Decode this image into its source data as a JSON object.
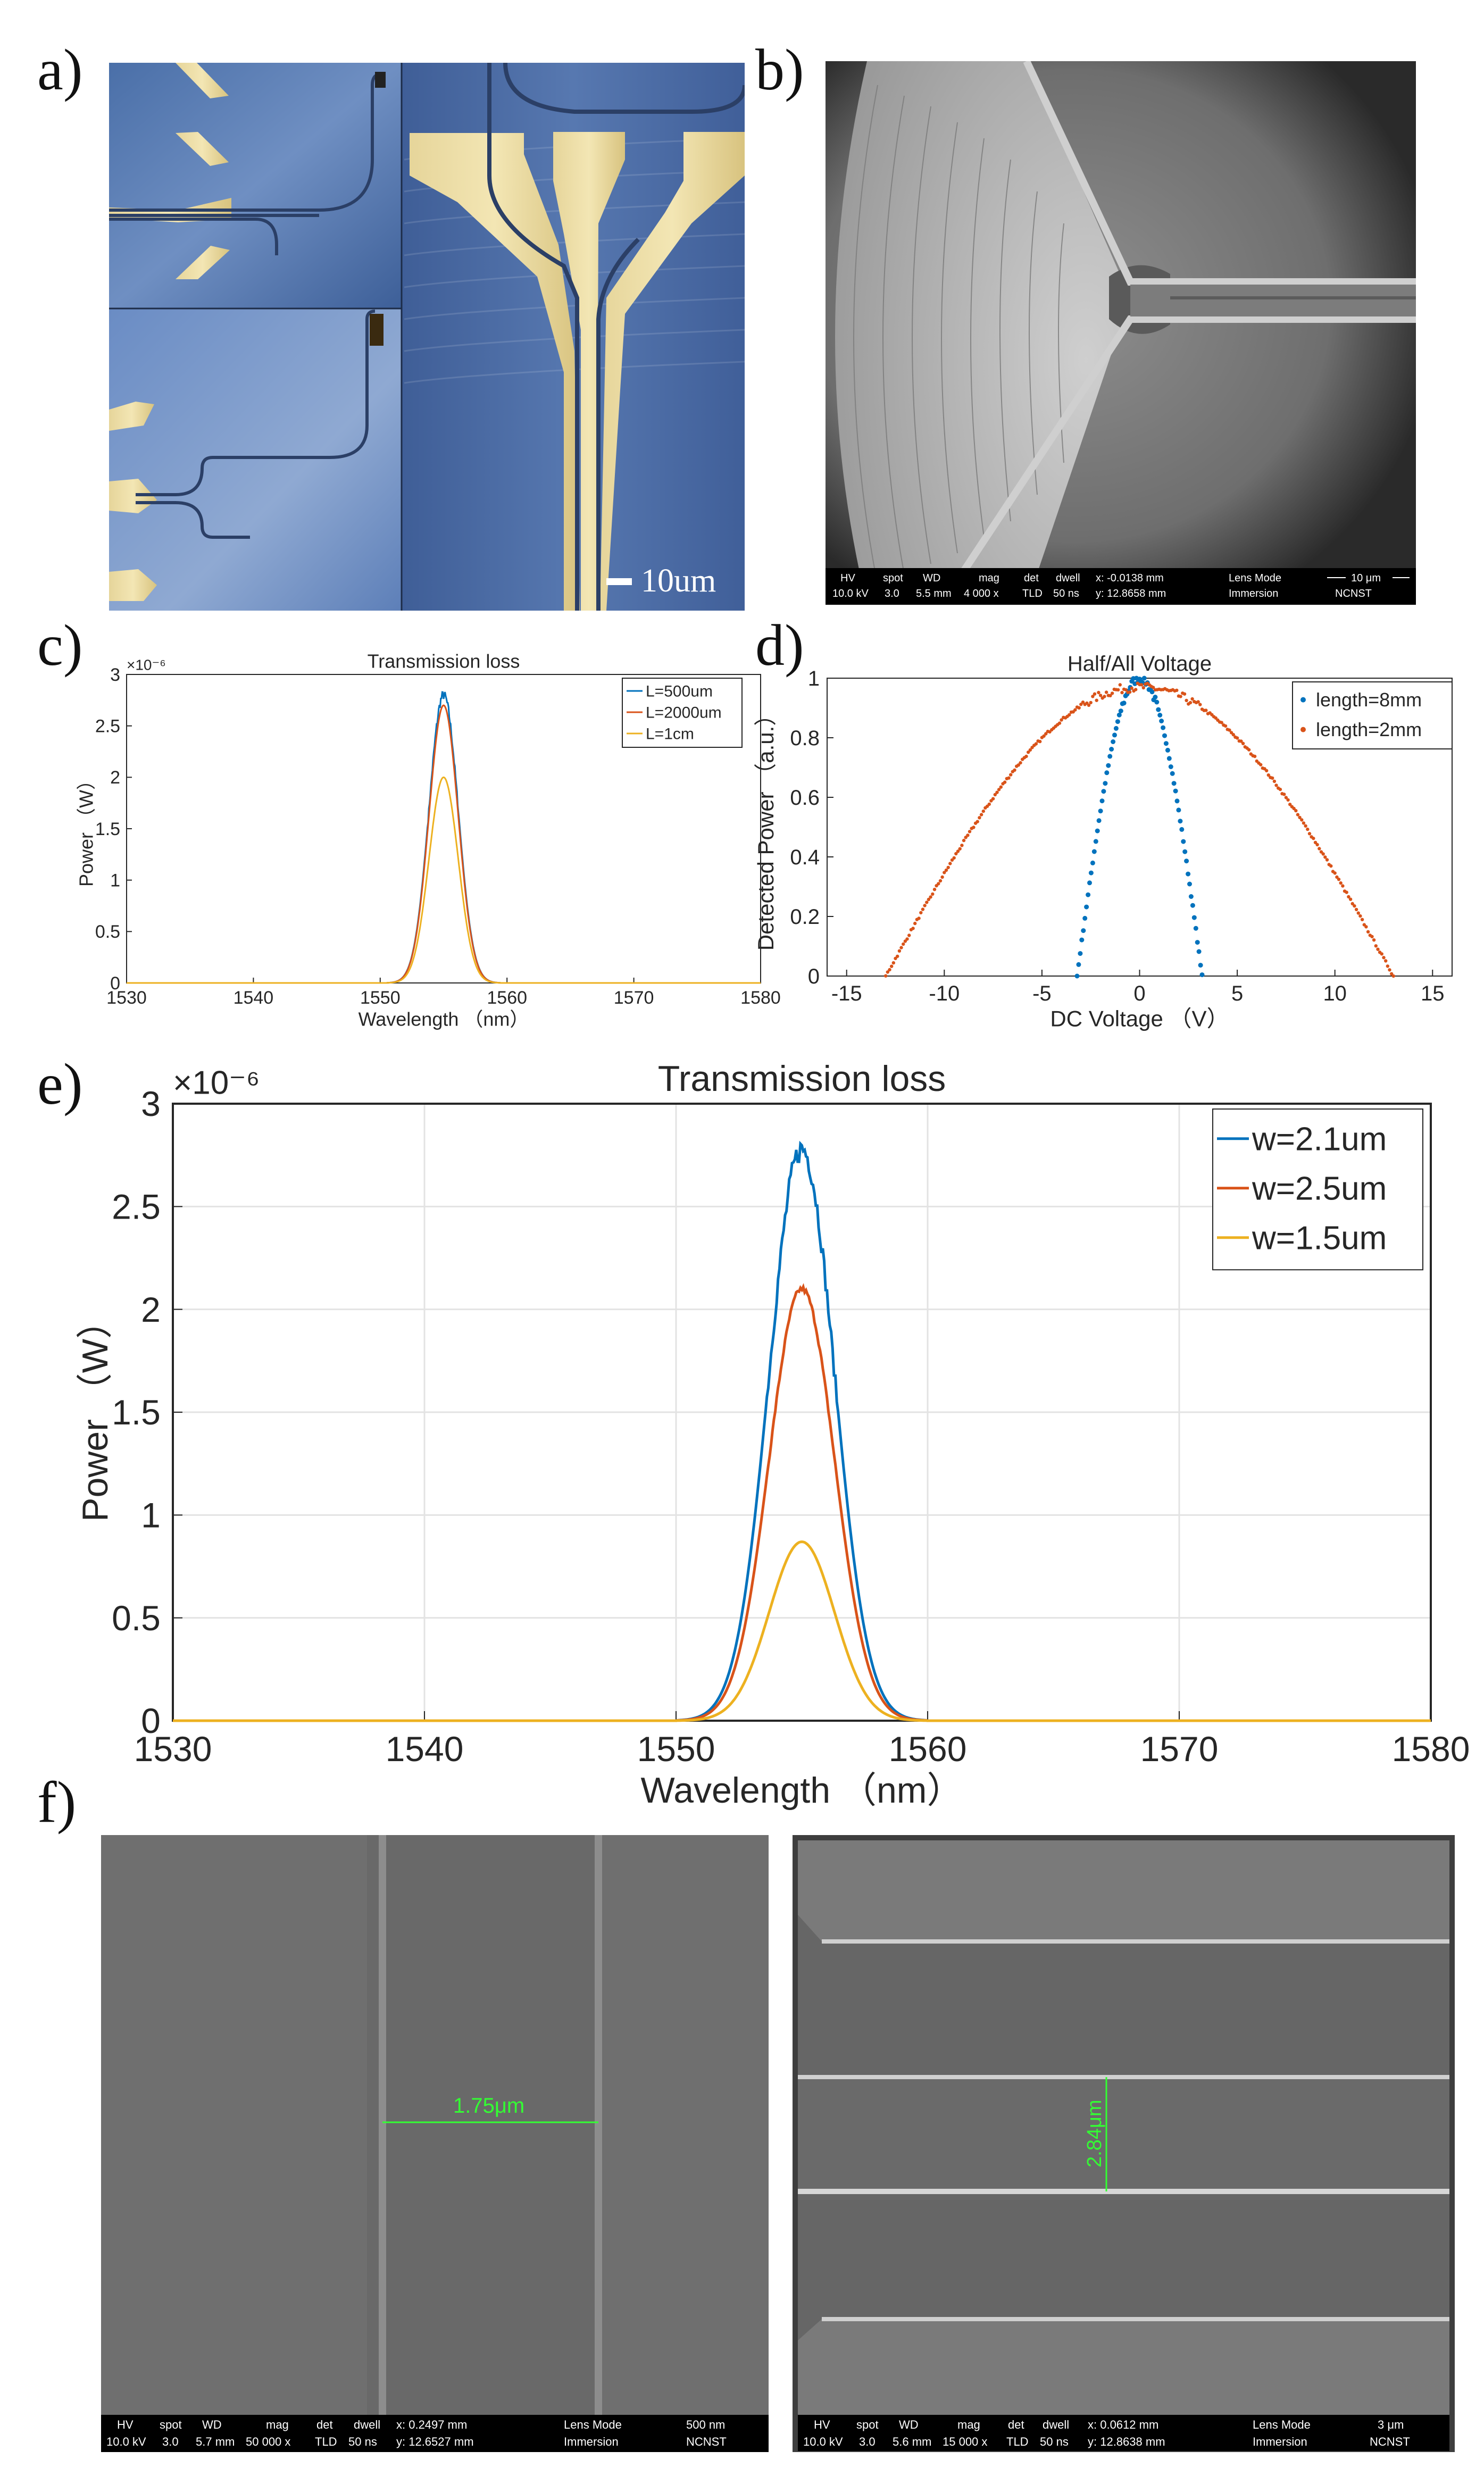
{
  "panels": {
    "a": {
      "letter": "a)",
      "scale_bar_label": "10um"
    },
    "b": {
      "letter": "b)",
      "info_bar": {
        "headers": [
          "HV",
          "spot",
          "WD",
          "mag",
          "det",
          "dwell"
        ],
        "values": [
          "10.0 kV",
          "3.0",
          "5.5 mm",
          "4 000 x",
          "TLD",
          "50 ns"
        ],
        "coords": [
          "x: -0.0138 mm",
          "y: 12.8658 mm"
        ],
        "lens_mode": [
          "Lens Mode",
          "Immersion"
        ],
        "scale": "10 μm",
        "org": "NCNST"
      }
    },
    "c": {
      "letter": "c)"
    },
    "d": {
      "letter": "d)"
    },
    "e": {
      "letter": "e)"
    },
    "f": {
      "letter": "f)",
      "left": {
        "measurement": "1.75μm",
        "info_bar": {
          "headers": [
            "HV",
            "spot",
            "WD",
            "mag",
            "det",
            "dwell"
          ],
          "values": [
            "10.0 kV",
            "3.0",
            "5.7 mm",
            "50 000 x",
            "TLD",
            "50 ns"
          ],
          "coords": [
            "x: 0.2497 mm",
            "y: 12.6527 mm"
          ],
          "lens_mode": [
            "Lens Mode",
            "Immersion"
          ],
          "scale": "500 nm",
          "org": "NCNST"
        }
      },
      "right": {
        "measurement": "2.84μm",
        "info_bar": {
          "headers": [
            "HV",
            "spot",
            "WD",
            "mag",
            "det",
            "dwell"
          ],
          "values": [
            "10.0 kV",
            "3.0",
            "5.6 mm",
            "15 000 x",
            "TLD",
            "50 ns"
          ],
          "coords": [
            "x: 0.0612 mm",
            "y: 12.8638 mm"
          ],
          "lens_mode": [
            "Lens Mode",
            "Immersion"
          ],
          "scale": "3 μm",
          "org": "NCNST"
        }
      }
    }
  },
  "chart_data": [
    {
      "id": "c",
      "type": "line",
      "title": "Transmission loss",
      "xlabel": "Wavelength （nm）",
      "ylabel": "Power （W）",
      "exponent_label": "×10⁻⁶",
      "xlim": [
        1530,
        1580
      ],
      "ylim": [
        0,
        3
      ],
      "xticks": [
        1530,
        1540,
        1550,
        1560,
        1570,
        1580
      ],
      "yticks": [
        0,
        0.5,
        1,
        1.5,
        2,
        2.5,
        3
      ],
      "grid": false,
      "legend_position": "top-right",
      "series": [
        {
          "name": "L=500um",
          "color": "#0072BD",
          "peak": 2.8,
          "center": 1555,
          "sigma": 1.15,
          "start": 1550.5,
          "end": 1559.5,
          "noise": 0.05
        },
        {
          "name": "L=2000um",
          "color": "#D95319",
          "peak": 2.7,
          "center": 1555,
          "sigma": 1.15,
          "start": 1550.5,
          "end": 1559.5,
          "noise": 0
        },
        {
          "name": "L=1cm",
          "color": "#EDB120",
          "peak": 2.0,
          "center": 1555,
          "sigma": 1.15,
          "start": 1550.5,
          "end": 1559.5,
          "noise": 0
        }
      ]
    },
    {
      "id": "d",
      "type": "scatter",
      "title": "Half/All Voltage",
      "xlabel": "DC Voltage （V）",
      "ylabel": "Detected Power （a.u.）",
      "xlim": [
        -16,
        16
      ],
      "ylim": [
        0,
        1
      ],
      "xticks": [
        -15,
        -10,
        -5,
        0,
        5,
        10,
        15
      ],
      "yticks": [
        0,
        0.2,
        0.4,
        0.6,
        0.8,
        1
      ],
      "grid": false,
      "legend_position": "top-right",
      "series": [
        {
          "name": "length=8mm",
          "color": "#0072BD",
          "zero_crossing": 3.2,
          "peak": 1.0
        },
        {
          "name": "length=2mm",
          "color": "#D95319",
          "zero_crossing": 13.0,
          "peak": 0.97
        }
      ]
    },
    {
      "id": "e",
      "type": "line",
      "title": "Transmission loss",
      "xlabel": "Wavelength （nm）",
      "ylabel": "Power （W）",
      "exponent_label": "×10⁻⁶",
      "xlim": [
        1530,
        1580
      ],
      "ylim": [
        0,
        3
      ],
      "xticks": [
        1530,
        1540,
        1550,
        1560,
        1570,
        1580
      ],
      "yticks": [
        0,
        0.5,
        1,
        1.5,
        2,
        2.5,
        3
      ],
      "grid": true,
      "legend_position": "top-right",
      "series": [
        {
          "name": "w=2.1um",
          "color": "#0072BD",
          "peak": 2.78,
          "center": 1555,
          "sigma": 1.3,
          "start": 1550,
          "end": 1560,
          "noise": 0.06
        },
        {
          "name": "w=2.5um",
          "color": "#D95319",
          "peak": 2.1,
          "center": 1555,
          "sigma": 1.3,
          "start": 1550,
          "end": 1560,
          "noise": 0.015
        },
        {
          "name": "w=1.5um",
          "color": "#EDB120",
          "peak": 0.87,
          "center": 1555,
          "sigma": 1.3,
          "start": 1550,
          "end": 1560,
          "noise": 0
        }
      ]
    }
  ]
}
